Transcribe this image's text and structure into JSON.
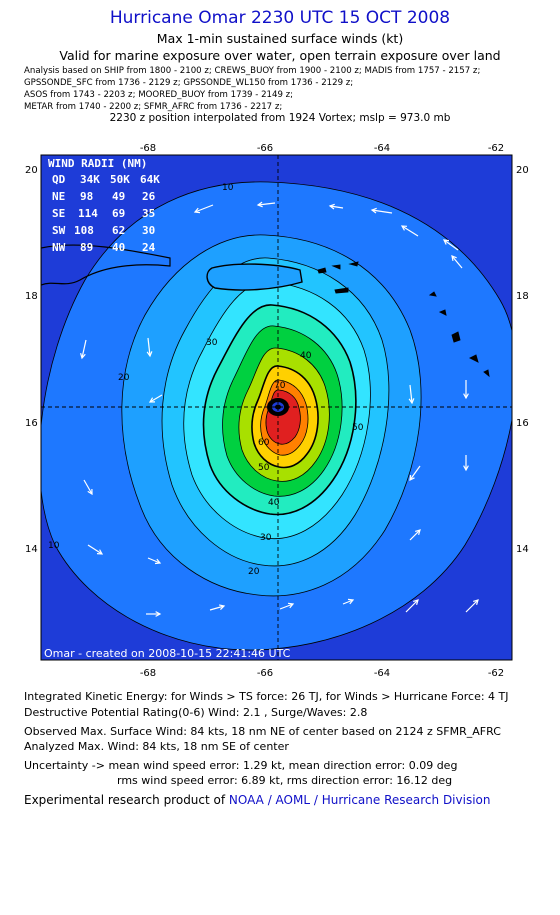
{
  "header": {
    "title": "Hurricane Omar 2230 UTC 15 OCT 2008",
    "subtitle1": "Max 1-min sustained surface winds (kt)",
    "subtitle2": "Valid for marine exposure over water, open terrain exposure over land",
    "analysis_lines": [
      "Analysis based on  SHIP from 1800 - 2100 z;  CREWS_BUOY from 1900 - 2100 z;  MADIS from 1757 - 2157 z;",
      "GPSSONDE_SFC from 1736 - 2129 z;  GPSSONDE_WL150 from 1736 - 2129 z;",
      "ASOS from 1743 - 2203 z;  MOORED_BUOY from 1739 - 2149 z;",
      "METAR from 1740 - 2200 z;  SFMR_AFRC from 1736 - 2217 z;"
    ],
    "position_note": "2230 z position interpolated from 1924 Vortex; mslp = 973.0 mb"
  },
  "map": {
    "lon_ticks": [
      "-68",
      "-66",
      "-64",
      "-62"
    ],
    "lat_ticks": [
      "20",
      "18",
      "16",
      "14"
    ],
    "lon_range": [
      -69.8,
      -61.7
    ],
    "lat_range": [
      12.2,
      20.3
    ],
    "center": {
      "lon": -65.7,
      "lat": 16.25
    },
    "contour_labels": [
      "10",
      "20",
      "30",
      "40",
      "50",
      "60",
      "70",
      "10",
      "20",
      "30",
      "40",
      "50"
    ],
    "created_note": "Omar - created on 2008-10-15 22:41:46 UTC",
    "wind_radii": {
      "title": "WIND RADII (NM)",
      "header": [
        "QD",
        "34K",
        "50K",
        "64K"
      ],
      "rows": [
        [
          "NE",
          "98",
          "49",
          "26"
        ],
        [
          "SE",
          "114",
          "69",
          "35"
        ],
        [
          "SW",
          "108",
          "62",
          "30"
        ],
        [
          "NW",
          "89",
          "40",
          "24"
        ]
      ]
    },
    "colors": {
      "c1": "#1e3cd8",
      "c2": "#1e78ff",
      "c3": "#1ea0ff",
      "c4": "#22c4ff",
      "c5": "#33e4ff",
      "c6": "#22ecc0",
      "c7": "#00d040",
      "c8": "#a8e000",
      "c9": "#ffd000",
      "c10": "#ff8000",
      "c11": "#e02020"
    }
  },
  "footer": {
    "ike": "Integrated Kinetic Energy:  for Winds > TS force: 26 TJ,  for Winds > Hurricane Force: 4 TJ",
    "dpr": "Destructive Potential Rating(0-6)   Wind: 2.1 , Surge/Waves: 2.8",
    "observed": "Observed Max. Surface Wind: 84 kts, 18 nm NE of center based on 2124 z SFMR_AFRC",
    "analyzed": "Analyzed Max. Wind: 84 kts, 18 nm SE of center",
    "uncert1": "Uncertainty -> mean wind speed error: 1.29 kt,   mean direction error: 0.09 deg",
    "uncert2": "rms wind speed error: 6.89 kt,   rms direction error: 16.12 deg",
    "credit_prefix": "Experimental research product of ",
    "credit_link": "NOAA / AOML / Hurricane Research Division"
  }
}
